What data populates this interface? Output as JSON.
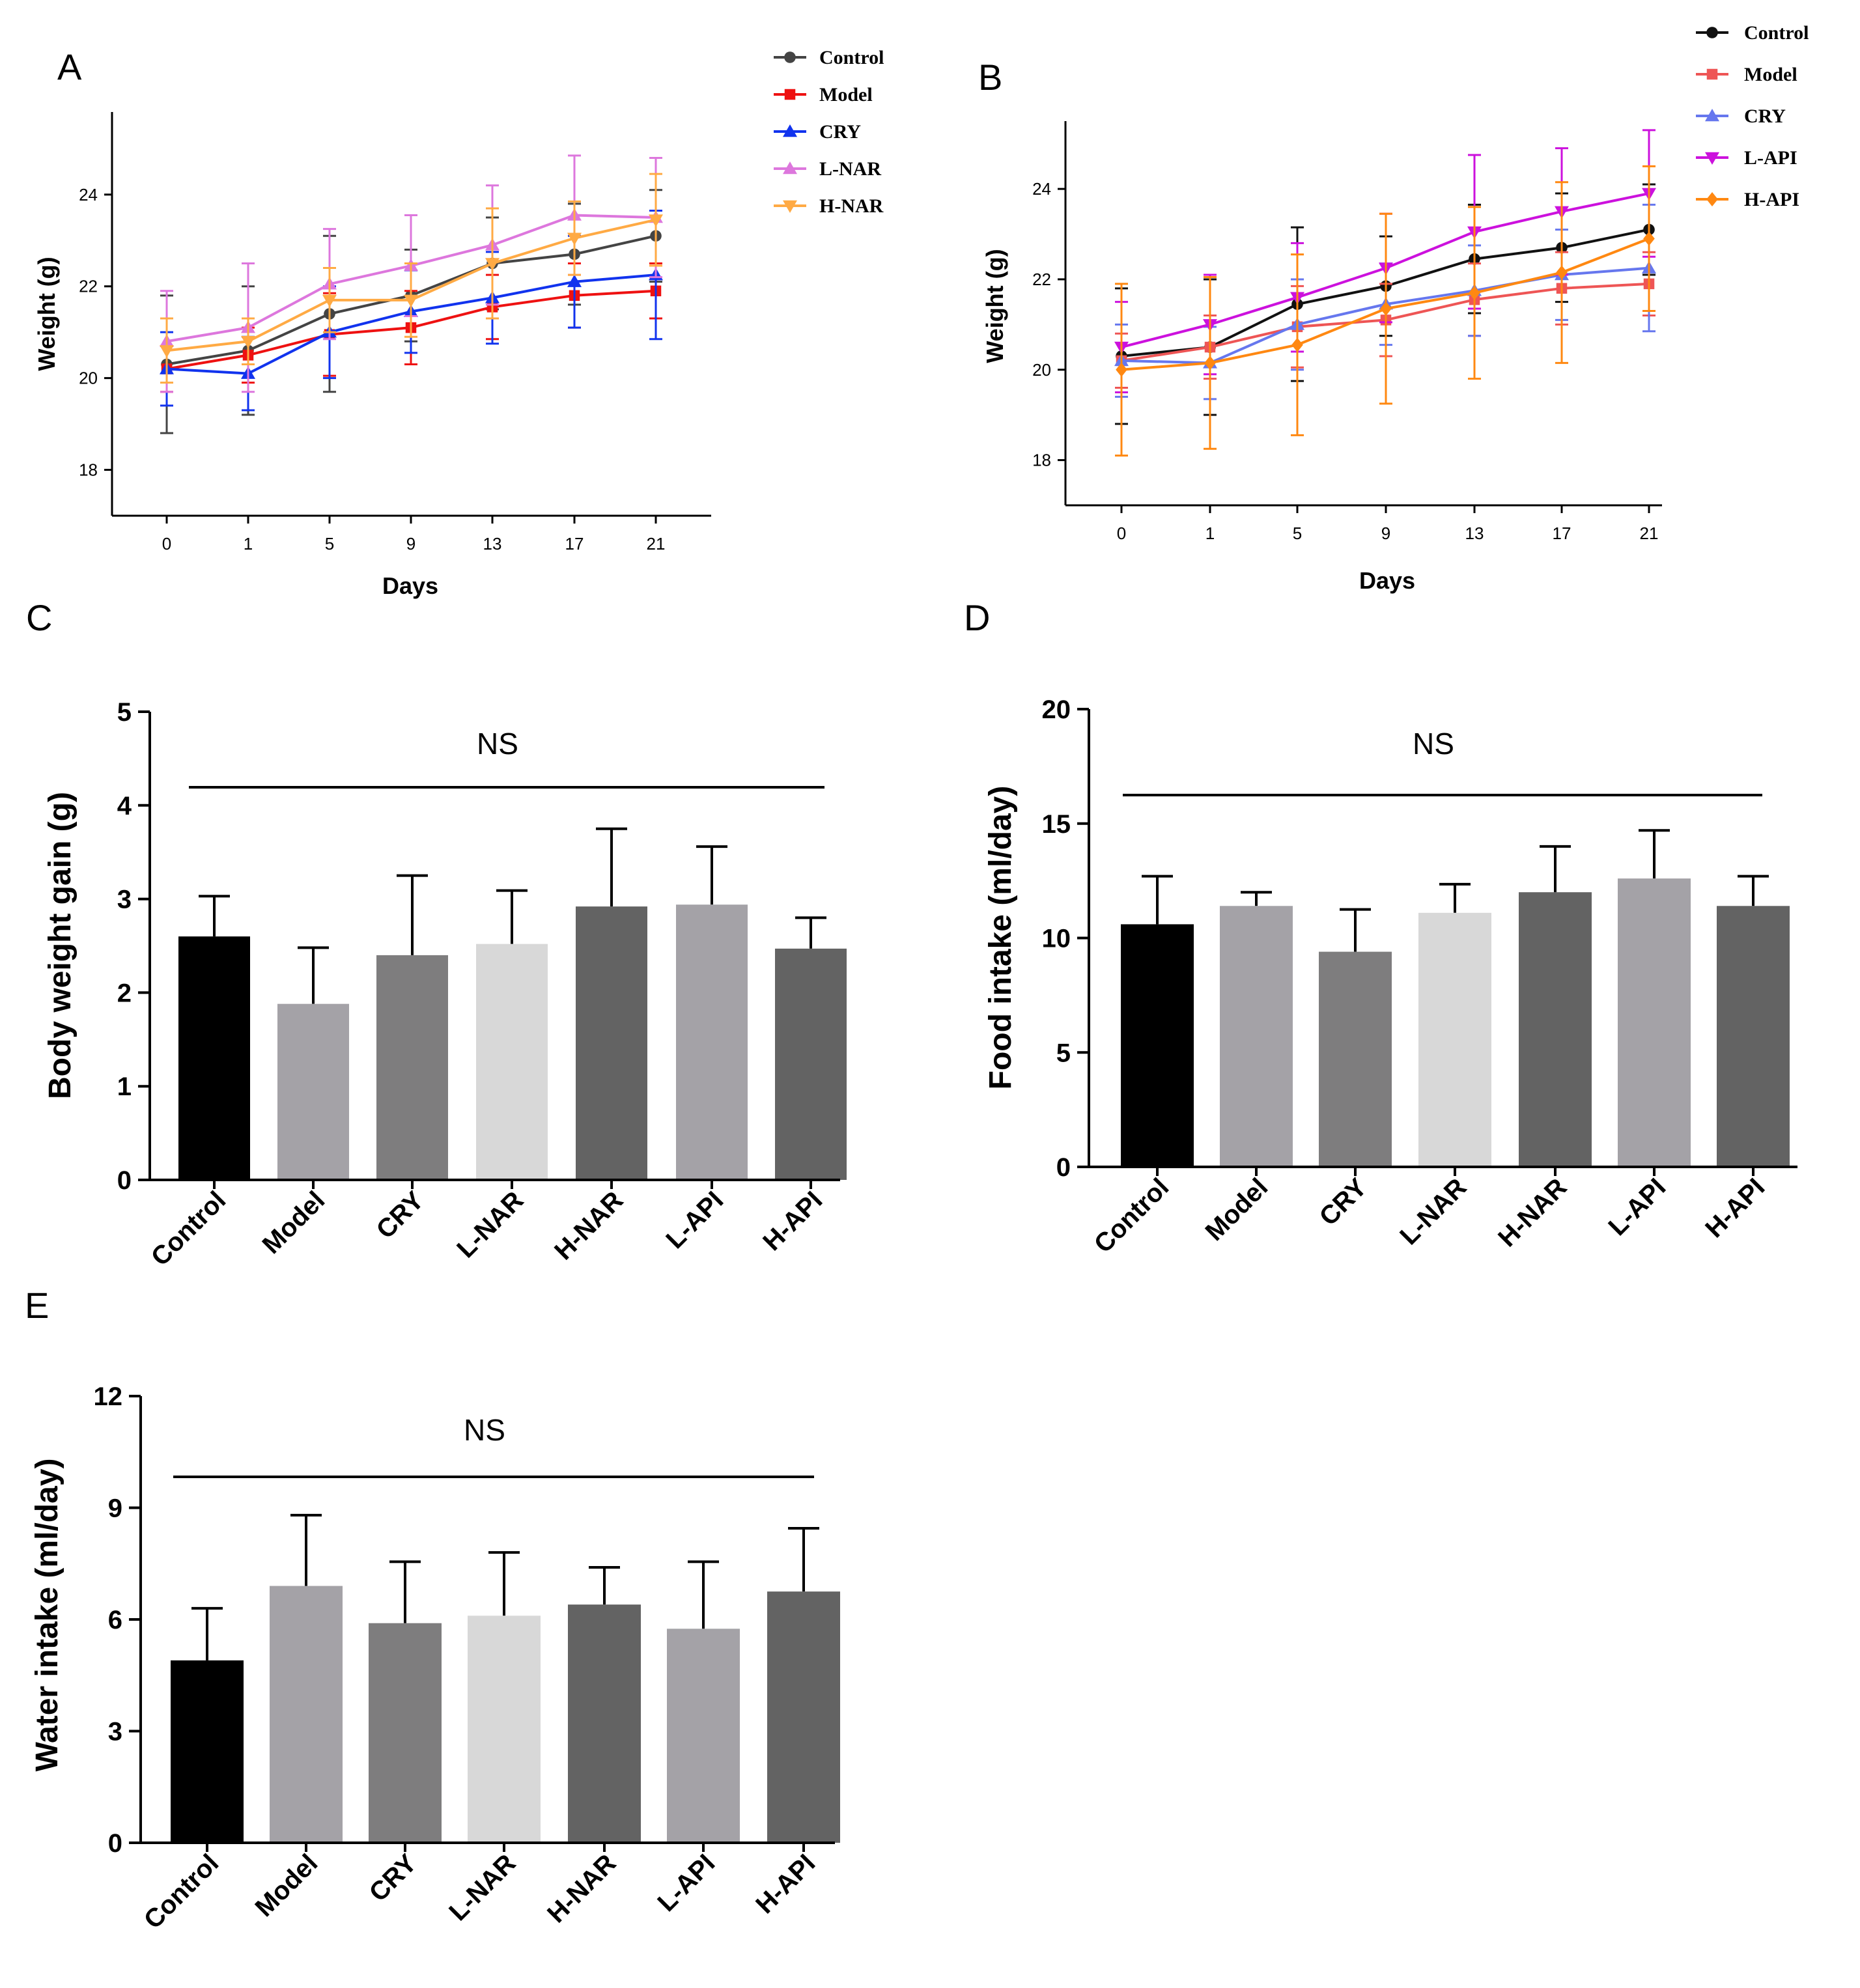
{
  "chart_data": [
    {
      "id": "A",
      "type": "line",
      "panel_label": "A",
      "xlabel": "Days",
      "ylabel": "Weight (g)",
      "categories": [
        "0",
        "1",
        "5",
        "9",
        "13",
        "17",
        "21"
      ],
      "ylim": [
        17,
        25.8
      ],
      "yticks": [
        "18",
        "20",
        "22",
        "24"
      ],
      "series": [
        {
          "name": "Control",
          "color": "#444444",
          "marker": "circle",
          "values": [
            20.3,
            20.6,
            21.4,
            21.8,
            22.5,
            22.7,
            23.1
          ],
          "errors": [
            1.5,
            1.4,
            1.7,
            1.0,
            1.0,
            1.1,
            1.0
          ]
        },
        {
          "name": "Model",
          "color": "#ee1111",
          "marker": "square",
          "values": [
            20.2,
            20.5,
            20.95,
            21.1,
            21.55,
            21.8,
            21.9
          ],
          "errors": [
            0.5,
            0.6,
            0.9,
            0.8,
            0.7,
            0.7,
            0.6
          ]
        },
        {
          "name": "CRY",
          "color": "#1133ee",
          "marker": "triangle-up",
          "values": [
            20.2,
            20.1,
            21.0,
            21.45,
            21.75,
            22.1,
            22.25
          ],
          "errors": [
            0.8,
            0.8,
            1.0,
            0.9,
            1.0,
            1.0,
            1.4
          ]
        },
        {
          "name": "L-NAR",
          "color": "#dd77dd",
          "marker": "triangle-up",
          "values": [
            20.8,
            21.1,
            22.05,
            22.45,
            22.9,
            23.55,
            23.5
          ],
          "errors": [
            1.1,
            1.4,
            1.2,
            1.1,
            1.3,
            1.3,
            1.3
          ]
        },
        {
          "name": "H-NAR",
          "color": "#ffaa44",
          "marker": "triangle-down",
          "values": [
            20.6,
            20.8,
            21.7,
            21.7,
            22.5,
            23.05,
            23.45
          ],
          "errors": [
            0.7,
            0.5,
            0.7,
            0.8,
            1.2,
            0.8,
            1.0
          ]
        }
      ]
    },
    {
      "id": "B",
      "type": "line",
      "panel_label": "B",
      "xlabel": "Days",
      "ylabel": "Weight (g)",
      "categories": [
        "0",
        "1",
        "5",
        "9",
        "13",
        "17",
        "21"
      ],
      "ylim": [
        17,
        25.5
      ],
      "yticks": [
        "18",
        "20",
        "22",
        "24"
      ],
      "series": [
        {
          "name": "Control",
          "color": "#111111",
          "marker": "circle",
          "values": [
            20.3,
            20.5,
            21.45,
            21.85,
            22.45,
            22.7,
            23.1
          ],
          "errors": [
            1.5,
            1.5,
            1.7,
            1.1,
            1.2,
            1.2,
            1.0
          ]
        },
        {
          "name": "Model",
          "color": "#ee5555",
          "marker": "square",
          "values": [
            20.2,
            20.5,
            20.95,
            21.1,
            21.55,
            21.8,
            21.9
          ],
          "errors": [
            0.6,
            0.7,
            0.9,
            0.8,
            0.8,
            0.8,
            0.7
          ]
        },
        {
          "name": "CRY",
          "color": "#6677ee",
          "marker": "triangle-up",
          "values": [
            20.2,
            20.15,
            21.0,
            21.45,
            21.75,
            22.1,
            22.25
          ],
          "errors": [
            0.8,
            0.8,
            1.0,
            0.9,
            1.0,
            1.0,
            1.4
          ]
        },
        {
          "name": "L-API",
          "color": "#cc11dd",
          "marker": "triangle-down",
          "values": [
            20.5,
            21.0,
            21.6,
            22.25,
            23.05,
            23.5,
            23.9
          ],
          "errors": [
            1.0,
            1.1,
            1.2,
            1.2,
            1.7,
            1.4,
            1.4
          ]
        },
        {
          "name": "H-API",
          "color": "#ff8811",
          "marker": "diamond",
          "values": [
            20.0,
            20.15,
            20.55,
            21.35,
            21.7,
            22.15,
            22.9
          ],
          "errors": [
            1.9,
            1.9,
            2.0,
            2.1,
            1.9,
            2.0,
            1.6
          ]
        }
      ]
    },
    {
      "id": "C",
      "type": "bar",
      "panel_label": "C",
      "ylabel": "Body weight gain (g)",
      "categories": [
        "Control",
        "Model",
        "CRY",
        "L-NAR",
        "H-NAR",
        "L-API",
        "H-API"
      ],
      "values": [
        2.6,
        1.88,
        2.4,
        2.52,
        2.92,
        2.94,
        2.47
      ],
      "errors": [
        0.43,
        0.6,
        0.85,
        0.57,
        0.83,
        0.62,
        0.33
      ],
      "colors": [
        "#000000",
        "#a4a2a7",
        "#7e7d7e",
        "#d8d8d8",
        "#636363",
        "#a4a2a7",
        "#636363"
      ],
      "ylim": [
        0,
        5
      ],
      "yticks": [
        "0",
        "1",
        "2",
        "3",
        "4",
        "5"
      ],
      "annotation": "NS"
    },
    {
      "id": "D",
      "type": "bar",
      "panel_label": "D",
      "ylabel": "Food intake (ml/day)",
      "categories": [
        "Control",
        "Model",
        "CRY",
        "L-NAR",
        "H-NAR",
        "L-API",
        "H-API"
      ],
      "values": [
        10.6,
        11.4,
        9.4,
        11.1,
        12.0,
        12.6,
        11.4
      ],
      "errors": [
        2.1,
        0.6,
        1.85,
        1.25,
        2.0,
        2.1,
        1.3
      ],
      "colors": [
        "#000000",
        "#a4a2a7",
        "#7e7d7e",
        "#d8d8d8",
        "#636363",
        "#a4a2a7",
        "#636363"
      ],
      "ylim": [
        0,
        20
      ],
      "yticks": [
        "0",
        "5",
        "10",
        "15",
        "20"
      ],
      "annotation": "NS"
    },
    {
      "id": "E",
      "type": "bar",
      "panel_label": "E",
      "ylabel": "Water intake (ml/day)",
      "categories": [
        "Control",
        "Model",
        "CRY",
        "L-NAR",
        "H-NAR",
        "L-API",
        "H-API"
      ],
      "values": [
        4.9,
        6.9,
        5.9,
        6.1,
        6.4,
        5.75,
        6.75
      ],
      "errors": [
        1.4,
        1.9,
        1.65,
        1.7,
        1.0,
        1.8,
        1.7
      ],
      "colors": [
        "#000000",
        "#a4a2a7",
        "#7e7d7e",
        "#d8d8d8",
        "#636363",
        "#a4a2a7",
        "#636363"
      ],
      "ylim": [
        0,
        12
      ],
      "yticks": [
        "0",
        "3",
        "6",
        "9",
        "12"
      ],
      "annotation": "NS"
    }
  ]
}
